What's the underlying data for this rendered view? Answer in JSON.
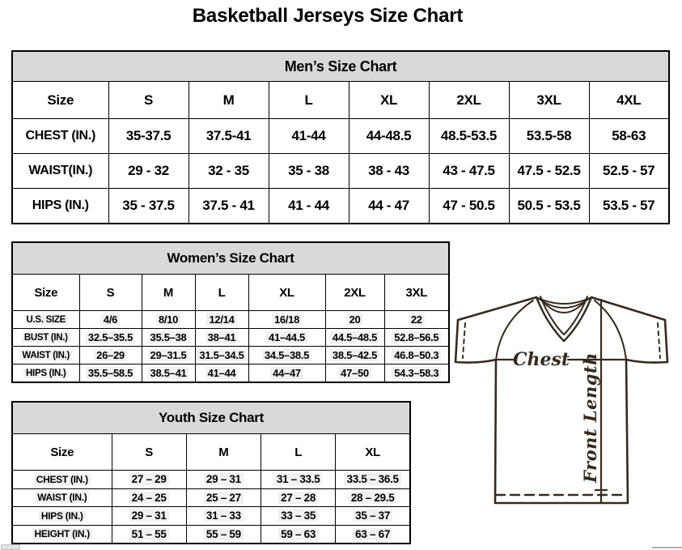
{
  "title": "Basketball Jerseys Size Chart",
  "tables": {
    "men": {
      "caption": "Men’s Size Chart",
      "columns": [
        "Size",
        "S",
        "M",
        "L",
        "XL",
        "2XL",
        "3XL",
        "4XL"
      ],
      "rows": [
        {
          "label": "CHEST (IN.)",
          "values": [
            "35-37.5",
            "37.5-41",
            "41-44",
            "44-48.5",
            "48.5-53.5",
            "53.5-58",
            "58-63"
          ]
        },
        {
          "label": "WAIST(IN.)",
          "values": [
            "29 - 32",
            "32 - 35",
            "35 - 38",
            "38 - 43",
            "43 - 47.5",
            "47.5 - 52.5",
            "52.5 - 57"
          ]
        },
        {
          "label": "HIPS (IN.)",
          "values": [
            "35 - 37.5",
            "37.5 - 41",
            "41 - 44",
            "44 - 47",
            "47 - 50.5",
            "50.5 - 53.5",
            "53.5 - 57"
          ]
        }
      ]
    },
    "women": {
      "caption": "Women’s Size Chart",
      "columns": [
        "Size",
        "S",
        "M",
        "L",
        "XL",
        "2XL",
        "3XL"
      ],
      "rows": [
        {
          "label": "U.S. SIZE",
          "values": [
            "4/6",
            "8/10",
            "12/14",
            "16/18",
            "20",
            "22"
          ]
        },
        {
          "label": "BUST (IN.)",
          "values": [
            "32.5–35.5",
            "35.5–38",
            "38–41",
            "41–44.5",
            "44.5–48.5",
            "52.8–56.5"
          ]
        },
        {
          "label": "WAIST (IN.)",
          "values": [
            "26–29",
            "29–31.5",
            "31.5–34.5",
            "34.5–38.5",
            "38.5–42.5",
            "46.8–50.3"
          ]
        },
        {
          "label": "HIPS (IN.)",
          "values": [
            "35.5–58.5",
            "38.5–41",
            "41–44",
            "44–47",
            "47–50",
            "54.3–58.3"
          ]
        }
      ]
    },
    "youth": {
      "caption": "Youth Size Chart",
      "columns": [
        "Size",
        "S",
        "M",
        "L",
        "XL"
      ],
      "rows": [
        {
          "label": "CHEST (IN.)",
          "values": [
            "27 – 29",
            "29 – 31",
            "31 – 33.5",
            "33.5 – 36.5"
          ]
        },
        {
          "label": "WAIST (IN.)",
          "values": [
            "24 – 25",
            "25 – 27",
            "27 – 28",
            "28 – 29.5"
          ]
        },
        {
          "label": "HIPS (IN.)",
          "values": [
            "29 – 31",
            "31 – 33",
            "33 – 35",
            "35 – 37"
          ]
        },
        {
          "label": "HEIGHT (IN.)",
          "values": [
            "51 – 55",
            "55 – 59",
            "59 – 63",
            "63 – 67"
          ]
        }
      ]
    }
  },
  "diagram": {
    "chest_label": "Chest",
    "front_length_label": "Front Length"
  },
  "colors": {
    "caption_bg": "#d9d9d9",
    "table_border": "#000000",
    "diagram_stroke": "#352a1f",
    "cell_shading": "#f1f1f1"
  }
}
